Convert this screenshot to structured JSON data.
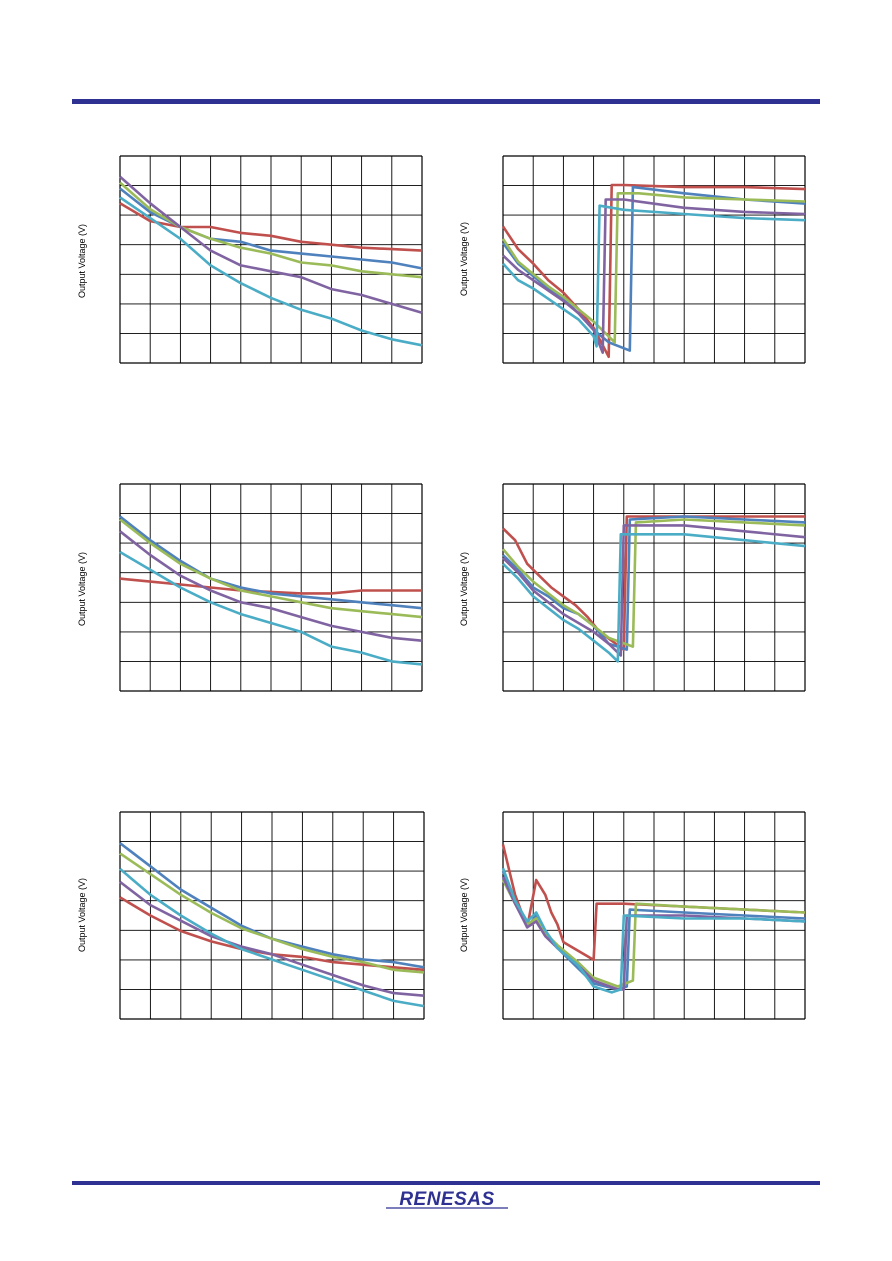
{
  "page": {
    "logo_text": "RENESAS",
    "colors": {
      "rule": "#2e3192",
      "logo": "#2e3192",
      "grid": "#000000"
    }
  },
  "series_colors": [
    "#c0504d",
    "#4f81bd",
    "#9bbb59",
    "#8064a2",
    "#4bacc6"
  ],
  "charts": [
    {
      "id": "top-left",
      "ylabel": "Output Voltage (V)",
      "chart_data": {
        "type": "line",
        "xlabel": "",
        "title": "",
        "ylabel": "Output Voltage (V)",
        "xlim": [
          0,
          100
        ],
        "ylim": [
          0,
          7
        ],
        "grid": true,
        "series": [
          {
            "color": "#c0504d",
            "x": [
              0,
              10,
              20,
              30,
              40,
              50,
              60,
              70,
              80,
              90,
              100
            ],
            "y": [
              5.4,
              4.8,
              4.6,
              4.6,
              4.4,
              4.3,
              4.1,
              4.0,
              3.9,
              3.85,
              3.8
            ]
          },
          {
            "color": "#4f81bd",
            "x": [
              0,
              10,
              20,
              30,
              40,
              50,
              60,
              70,
              80,
              90,
              100
            ],
            "y": [
              5.9,
              5.1,
              4.6,
              4.2,
              4.1,
              3.8,
              3.7,
              3.6,
              3.5,
              3.4,
              3.2
            ]
          },
          {
            "color": "#9bbb59",
            "x": [
              0,
              10,
              20,
              30,
              40,
              50,
              60,
              70,
              80,
              90,
              100
            ],
            "y": [
              6.1,
              5.2,
              4.6,
              4.2,
              3.9,
              3.7,
              3.4,
              3.3,
              3.1,
              3.0,
              2.9
            ]
          },
          {
            "color": "#8064a2",
            "x": [
              0,
              10,
              20,
              30,
              40,
              50,
              60,
              70,
              80,
              90,
              100
            ],
            "y": [
              6.3,
              5.4,
              4.6,
              3.8,
              3.3,
              3.1,
              2.9,
              2.5,
              2.3,
              2.0,
              1.7
            ]
          },
          {
            "color": "#4bacc6",
            "x": [
              0,
              10,
              20,
              30,
              40,
              50,
              60,
              70,
              80,
              90,
              100
            ],
            "y": [
              5.6,
              4.9,
              4.2,
              3.3,
              2.7,
              2.2,
              1.8,
              1.5,
              1.1,
              0.8,
              0.6
            ]
          }
        ]
      }
    },
    {
      "id": "top-right",
      "ylabel": "Output Voltage (V)",
      "chart_data": {
        "type": "line",
        "xlabel": "",
        "title": "",
        "ylabel": "Output Voltage (V)",
        "xlim": [
          0,
          100
        ],
        "ylim": [
          0,
          10
        ],
        "grid": true,
        "series": [
          {
            "color": "#c0504d",
            "x": [
              0,
              5,
              10,
              15,
              20,
              25,
              30,
              35,
              36,
              40,
              60,
              80,
              100
            ],
            "y": [
              6.6,
              5.5,
              4.8,
              4.0,
              3.4,
              2.6,
              1.7,
              0.3,
              8.6,
              8.6,
              8.5,
              8.5,
              8.4
            ]
          },
          {
            "color": "#4f81bd",
            "x": [
              0,
              5,
              10,
              15,
              20,
              25,
              30,
              35,
              42,
              43,
              60,
              80,
              100
            ],
            "y": [
              5.8,
              4.8,
              4.2,
              3.6,
              3.1,
              2.4,
              1.6,
              1.0,
              0.6,
              8.5,
              8.2,
              7.9,
              7.7
            ]
          },
          {
            "color": "#9bbb59",
            "x": [
              0,
              5,
              10,
              15,
              20,
              25,
              30,
              37,
              38,
              45,
              60,
              80,
              100
            ],
            "y": [
              6.0,
              4.9,
              4.3,
              3.7,
              3.2,
              2.6,
              2.0,
              1.0,
              8.2,
              8.2,
              8.0,
              7.9,
              7.8
            ]
          },
          {
            "color": "#8064a2",
            "x": [
              0,
              5,
              10,
              15,
              20,
              25,
              30,
              33,
              34,
              40,
              60,
              80,
              100
            ],
            "y": [
              5.2,
              4.5,
              4.0,
              3.5,
              3.0,
              2.4,
              1.6,
              0.5,
              7.9,
              7.9,
              7.5,
              7.3,
              7.2
            ]
          },
          {
            "color": "#4bacc6",
            "x": [
              0,
              5,
              10,
              15,
              20,
              25,
              30,
              31,
              32,
              40,
              60,
              80,
              100
            ],
            "y": [
              4.8,
              4.0,
              3.6,
              3.1,
              2.6,
              2.1,
              1.3,
              0.8,
              7.6,
              7.4,
              7.2,
              7.0,
              6.9
            ]
          }
        ]
      }
    },
    {
      "id": "middle-left",
      "ylabel": "Output Voltage (V)",
      "chart_data": {
        "type": "line",
        "xlabel": "",
        "title": "",
        "ylabel": "Output Voltage (V)",
        "xlim": [
          0,
          100
        ],
        "ylim": [
          0,
          7
        ],
        "grid": true,
        "series": [
          {
            "color": "#c0504d",
            "x": [
              0,
              10,
              20,
              30,
              40,
              50,
              60,
              70,
              80,
              90,
              100
            ],
            "y": [
              3.8,
              3.7,
              3.6,
              3.5,
              3.4,
              3.35,
              3.3,
              3.3,
              3.4,
              3.4,
              3.4
            ]
          },
          {
            "color": "#4f81bd",
            "x": [
              0,
              10,
              20,
              30,
              40,
              50,
              60,
              70,
              80,
              90,
              100
            ],
            "y": [
              5.9,
              5.1,
              4.4,
              3.8,
              3.5,
              3.3,
              3.2,
              3.1,
              3.0,
              2.9,
              2.8
            ]
          },
          {
            "color": "#9bbb59",
            "x": [
              0,
              10,
              20,
              30,
              40,
              50,
              60,
              70,
              80,
              90,
              100
            ],
            "y": [
              5.8,
              5.0,
              4.3,
              3.8,
              3.4,
              3.2,
              3.0,
              2.8,
              2.7,
              2.6,
              2.5
            ]
          },
          {
            "color": "#8064a2",
            "x": [
              0,
              10,
              20,
              30,
              40,
              50,
              60,
              70,
              80,
              90,
              100
            ],
            "y": [
              5.4,
              4.6,
              3.9,
              3.4,
              3.0,
              2.8,
              2.5,
              2.2,
              2.0,
              1.8,
              1.7
            ]
          },
          {
            "color": "#4bacc6",
            "x": [
              0,
              10,
              20,
              30,
              40,
              50,
              60,
              70,
              80,
              90,
              100
            ],
            "y": [
              4.7,
              4.1,
              3.5,
              3.0,
              2.6,
              2.3,
              2.0,
              1.5,
              1.3,
              1.0,
              0.9
            ]
          }
        ]
      }
    },
    {
      "id": "middle-right",
      "ylabel": "Output Voltage (V)",
      "chart_data": {
        "type": "line",
        "xlabel": "",
        "title": "",
        "ylabel": "Output Voltage (V)",
        "xlim": [
          0,
          100
        ],
        "ylim": [
          0,
          7
        ],
        "grid": true,
        "series": [
          {
            "color": "#c0504d",
            "x": [
              0,
              4,
              8,
              12,
              16,
              20,
              24,
              28,
              32,
              40,
              41,
              60,
              80,
              100
            ],
            "y": [
              5.5,
              5.1,
              4.3,
              3.9,
              3.5,
              3.2,
              2.9,
              2.5,
              2.0,
              1.4,
              5.9,
              5.9,
              5.9,
              5.9
            ]
          },
          {
            "color": "#4f81bd",
            "x": [
              0,
              5,
              10,
              15,
              20,
              25,
              30,
              35,
              41,
              42,
              60,
              80,
              100
            ],
            "y": [
              4.6,
              4.1,
              3.5,
              3.2,
              2.8,
              2.6,
              2.2,
              1.6,
              1.4,
              5.8,
              5.9,
              5.8,
              5.7
            ]
          },
          {
            "color": "#9bbb59",
            "x": [
              0,
              5,
              10,
              15,
              20,
              25,
              30,
              35,
              43,
              44,
              60,
              80,
              100
            ],
            "y": [
              4.8,
              4.2,
              3.7,
              3.3,
              2.9,
              2.6,
              2.2,
              1.8,
              1.5,
              5.7,
              5.8,
              5.7,
              5.6
            ]
          },
          {
            "color": "#8064a2",
            "x": [
              0,
              5,
              10,
              15,
              20,
              25,
              30,
              35,
              39,
              40,
              60,
              80,
              100
            ],
            "y": [
              4.5,
              4.0,
              3.4,
              3.0,
              2.6,
              2.3,
              2.0,
              1.6,
              1.2,
              5.6,
              5.6,
              5.4,
              5.2
            ]
          },
          {
            "color": "#4bacc6",
            "x": [
              0,
              5,
              10,
              15,
              20,
              25,
              30,
              35,
              38,
              39,
              60,
              80,
              100
            ],
            "y": [
              4.3,
              3.8,
              3.2,
              2.8,
              2.4,
              2.1,
              1.7,
              1.3,
              1.0,
              5.3,
              5.3,
              5.1,
              4.9
            ]
          }
        ]
      }
    },
    {
      "id": "bottom-left",
      "ylabel": "Output Voltage (V)",
      "chart_data": {
        "type": "line",
        "xlabel": "",
        "title": "",
        "ylabel": "Output Voltage (V)",
        "xlim": [
          0,
          100
        ],
        "ylim": [
          0,
          8
        ],
        "grid": true,
        "series": [
          {
            "color": "#c0504d",
            "x": [
              0,
              10,
              20,
              30,
              40,
              50,
              60,
              70,
              80,
              90,
              100
            ],
            "y": [
              4.7,
              4.0,
              3.4,
              3.0,
              2.7,
              2.5,
              2.4,
              2.2,
              2.1,
              2.0,
              1.9
            ]
          },
          {
            "color": "#4f81bd",
            "x": [
              0,
              10,
              20,
              30,
              40,
              50,
              60,
              70,
              80,
              90,
              100
            ],
            "y": [
              6.8,
              5.9,
              5.0,
              4.3,
              3.6,
              3.1,
              2.8,
              2.5,
              2.3,
              2.2,
              2.0
            ]
          },
          {
            "color": "#9bbb59",
            "x": [
              0,
              10,
              20,
              30,
              40,
              50,
              60,
              70,
              80,
              90,
              100
            ],
            "y": [
              6.4,
              5.6,
              4.8,
              4.1,
              3.5,
              3.1,
              2.7,
              2.4,
              2.2,
              1.9,
              1.8
            ]
          },
          {
            "color": "#8064a2",
            "x": [
              0,
              10,
              20,
              30,
              40,
              50,
              60,
              70,
              80,
              90,
              100
            ],
            "y": [
              5.3,
              4.4,
              3.8,
              3.2,
              2.8,
              2.5,
              2.1,
              1.7,
              1.3,
              1.0,
              0.9
            ]
          },
          {
            "color": "#4bacc6",
            "x": [
              0,
              10,
              20,
              30,
              40,
              50,
              60,
              70,
              80,
              90,
              100
            ],
            "y": [
              5.8,
              4.8,
              4.0,
              3.3,
              2.7,
              2.3,
              1.9,
              1.5,
              1.1,
              0.7,
              0.5
            ]
          }
        ]
      }
    },
    {
      "id": "bottom-right",
      "ylabel": "Output Voltage (V)",
      "chart_data": {
        "type": "line",
        "xlabel": "",
        "title": "",
        "ylabel": "Output Voltage (V)",
        "xlim": [
          0,
          100
        ],
        "ylim": [
          0,
          7
        ],
        "grid": true,
        "series": [
          {
            "color": "#c0504d",
            "x": [
              0,
              4,
              8,
              11,
              14,
              16,
              18,
              20,
              25,
              30,
              31,
              40,
              60,
              80,
              100
            ],
            "y": [
              5.9,
              4.2,
              3.1,
              4.7,
              4.2,
              3.6,
              3.2,
              2.6,
              2.3,
              2.0,
              3.9,
              3.9,
              3.8,
              3.7,
              3.6
            ]
          },
          {
            "color": "#4f81bd",
            "x": [
              0,
              4,
              8,
              11,
              14,
              18,
              25,
              30,
              38,
              41,
              42,
              60,
              80,
              100
            ],
            "y": [
              5.0,
              4.0,
              3.1,
              3.5,
              2.9,
              2.4,
              1.7,
              1.2,
              1.0,
              1.1,
              3.7,
              3.6,
              3.5,
              3.4
            ]
          },
          {
            "color": "#9bbb59",
            "x": [
              0,
              4,
              8,
              11,
              14,
              18,
              25,
              30,
              38,
              43,
              44,
              60,
              80,
              100
            ],
            "y": [
              4.7,
              3.9,
              3.2,
              3.4,
              2.9,
              2.5,
              1.9,
              1.4,
              1.1,
              1.3,
              3.9,
              3.8,
              3.7,
              3.6
            ]
          },
          {
            "color": "#8064a2",
            "x": [
              0,
              4,
              8,
              11,
              14,
              18,
              25,
              30,
              38,
              40,
              41,
              60,
              80,
              100
            ],
            "y": [
              4.8,
              3.9,
              3.1,
              3.3,
              2.8,
              2.4,
              1.8,
              1.3,
              1.0,
              1.0,
              3.5,
              3.5,
              3.4,
              3.3
            ]
          },
          {
            "color": "#4bacc6",
            "x": [
              0,
              4,
              8,
              11,
              14,
              18,
              25,
              30,
              36,
              39,
              40,
              60,
              80,
              100
            ],
            "y": [
              5.1,
              4.0,
              3.3,
              3.6,
              3.0,
              2.4,
              1.8,
              1.1,
              0.9,
              1.0,
              3.5,
              3.4,
              3.4,
              3.3
            ]
          }
        ]
      }
    }
  ]
}
